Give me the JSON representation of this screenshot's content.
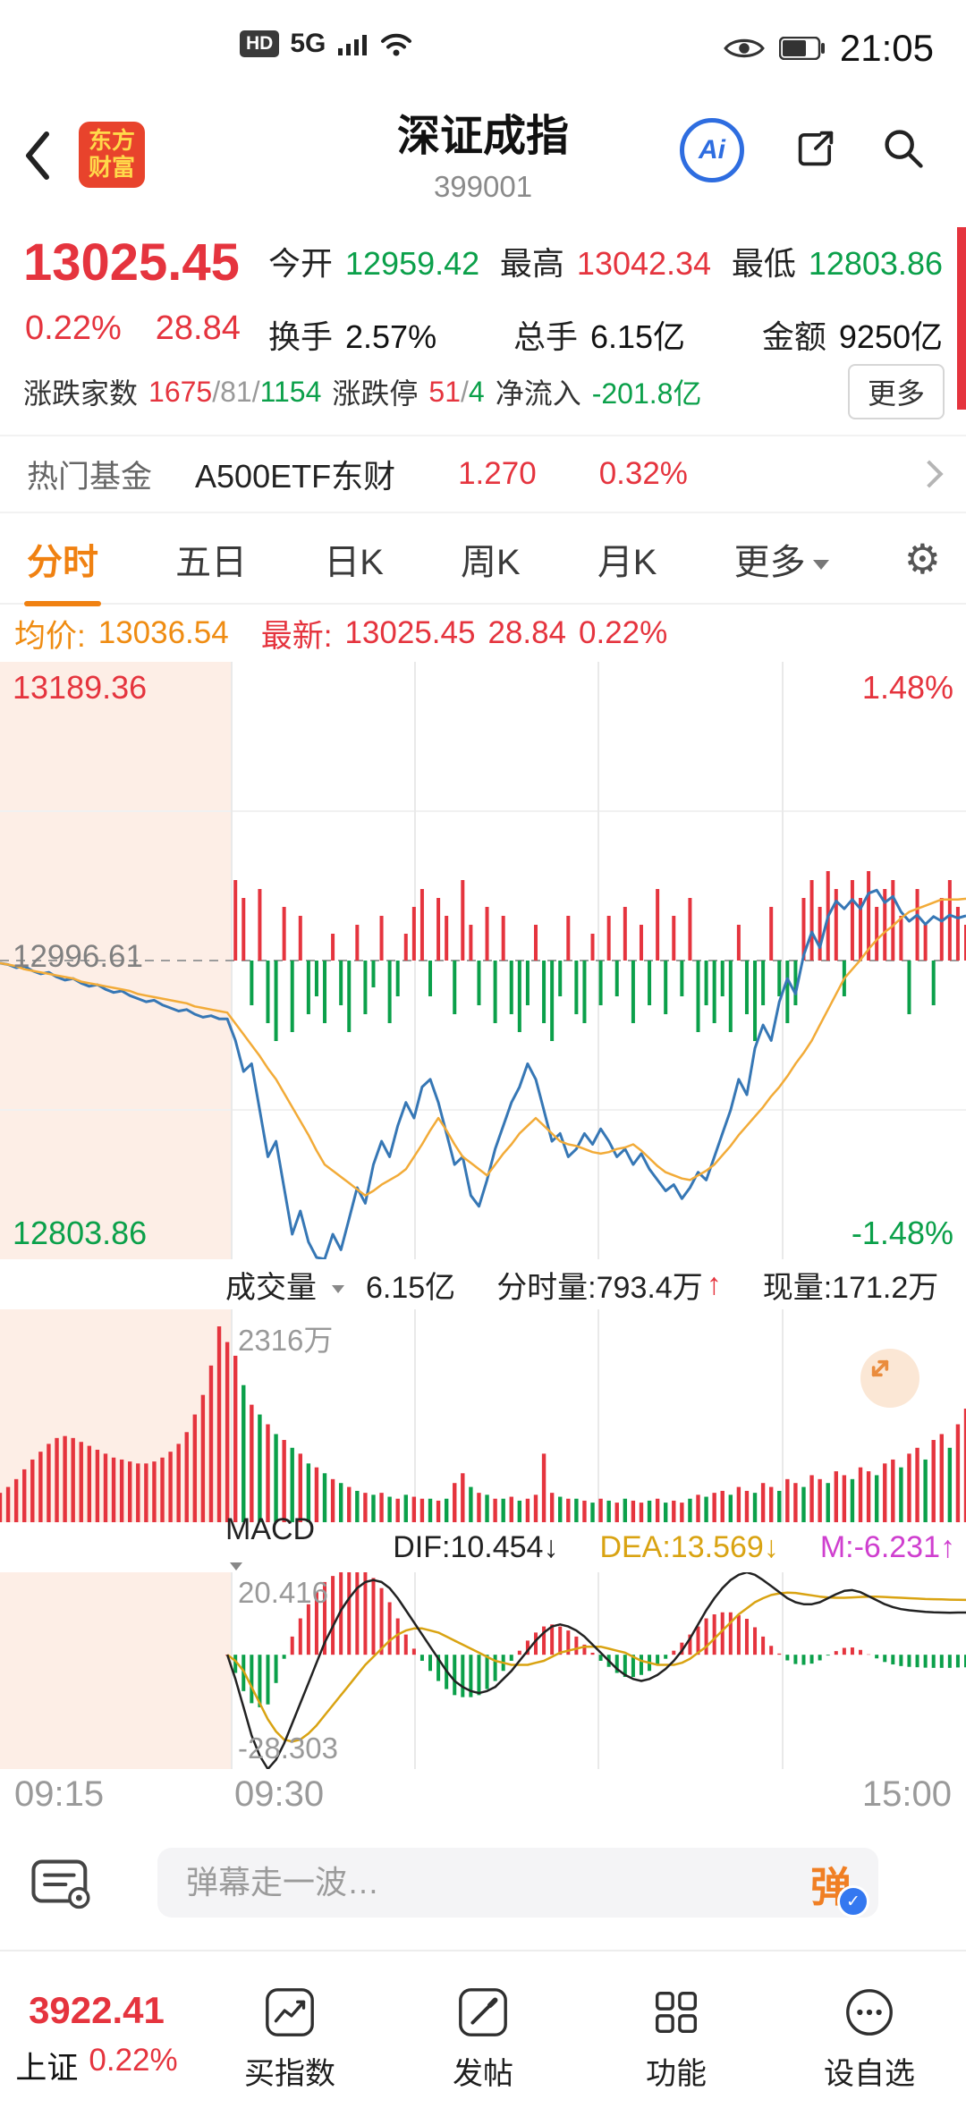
{
  "colors": {
    "red": "#e5343e",
    "green": "#0ba04a",
    "orange": "#f08111",
    "yellow_line": "#f2ab38",
    "blue_line": "#3677b5",
    "magenta": "#cf3fcf",
    "dea_yellow": "#d9a312",
    "pink_bg": "#fdeee6",
    "badge_blue": "#3478f0",
    "ai_blue": "#2e6de0"
  },
  "status_bar": {
    "hd": "HD",
    "network": "5G",
    "time": "21:05"
  },
  "header": {
    "logo_top": "东方",
    "logo_bottom": "财富",
    "title": "深证成指",
    "code": "399001",
    "ai": "Ai"
  },
  "quote": {
    "price": "13025.45",
    "change_pct": "0.22%",
    "change_amt": "28.84",
    "open_label": "今开",
    "open": "12959.42",
    "high_label": "最高",
    "high": "13042.34",
    "low_label": "最低",
    "low": "12803.86",
    "turnover_label": "换手",
    "turnover": "2.57%",
    "volume_label": "总手",
    "volume": "6.15亿",
    "amount_label": "金额",
    "amount": "9250亿",
    "breadth_label": "涨跌家数",
    "up_count": "1675",
    "flat_count": "81",
    "down_count": "1154",
    "slash": "/",
    "limit_label": "涨跌停",
    "limit_up": "51",
    "limit_down": "4",
    "inflow_label": "净流入",
    "inflow": "-201.8亿",
    "more": "更多"
  },
  "fund": {
    "label": "热门基金",
    "name": "A500ETF东财",
    "price": "1.270",
    "pct": "0.32%"
  },
  "tabs": {
    "items": [
      "分时",
      "五日",
      "日K",
      "周K",
      "月K"
    ],
    "more": "更多"
  },
  "info": {
    "avg_label": "均价:",
    "avg": "13036.54",
    "last_label": "最新:",
    "last": "13025.45",
    "chg": "28.84",
    "pct": "0.22%"
  },
  "volume_header": {
    "name": "成交量",
    "total": "6.15亿",
    "minute": "分时量:793.4万",
    "current": "现量:171.2万"
  },
  "macd_header": {
    "name": "MACD",
    "dif": "DIF:10.454↓",
    "dea": "DEA:13.569↓",
    "m": "M:-6.231↑"
  },
  "time_axis": [
    "09:15",
    "09:30",
    "15:00"
  ],
  "comment": {
    "placeholder": "弹幕走一波…",
    "send": "弹"
  },
  "nav": {
    "index_value": "3922.41",
    "index_name": "上证",
    "index_pct": "0.22%",
    "items": [
      "买指数",
      "发帖",
      "功能",
      "设自选"
    ]
  },
  "icons": {
    "gear": "⚙",
    "check": "✓",
    "arrow_up": "↑"
  },
  "chart_data": [
    {
      "type": "line",
      "name": "intraday-price",
      "ylim": [
        12803.86,
        13189.36
      ],
      "prev_close": 12996.61,
      "session_split": 0.24,
      "x_range": [
        "09:15",
        "15:00"
      ],
      "y_labels": {
        "top": "13189.36",
        "mid": "12996.61",
        "bottom": "12803.86",
        "top_pct": "1.48%",
        "bottom_pct": "-1.48%"
      },
      "series": [
        {
          "name": "price",
          "color": "#3677b5",
          "width": 3,
          "values": [
            12995,
            12994,
            12992,
            12993,
            12990,
            12988,
            12989,
            12986,
            12984,
            12985,
            12982,
            12980,
            12981,
            12978,
            12976,
            12977,
            12974,
            12972,
            12970,
            12971,
            12968,
            12966,
            12964,
            12965,
            12962,
            12960,
            12961,
            12959,
            12959,
            12945,
            12925,
            12930,
            12900,
            12870,
            12880,
            12850,
            12820,
            12835,
            12815,
            12805,
            12804,
            12820,
            12810,
            12830,
            12850,
            12840,
            12865,
            12880,
            12870,
            12890,
            12905,
            12895,
            12915,
            12920,
            12905,
            12885,
            12865,
            12870,
            12845,
            12838,
            12855,
            12875,
            12890,
            12905,
            12915,
            12930,
            12920,
            12900,
            12880,
            12885,
            12870,
            12875,
            12885,
            12878,
            12888,
            12880,
            12870,
            12875,
            12865,
            12872,
            12862,
            12855,
            12848,
            12852,
            12843,
            12850,
            12860,
            12855,
            12870,
            12885,
            12900,
            12920,
            12910,
            12940,
            12955,
            12945,
            12970,
            12985,
            12975,
            13000,
            13015,
            13005,
            13025,
            13035,
            13030,
            13036,
            13030,
            13040,
            13042,
            13034,
            13038,
            13028,
            13022,
            13026,
            13020,
            13025,
            13022,
            13026,
            13024,
            13025.45
          ]
        },
        {
          "name": "avg",
          "color": "#f2ab38",
          "width": 2.5,
          "values": [
            12995,
            12994,
            12993,
            12991,
            12990,
            12989,
            12988,
            12987,
            12986,
            12985,
            12983,
            12982,
            12981,
            12980,
            12979,
            12978,
            12977,
            12975,
            12974,
            12973,
            12972,
            12971,
            12970,
            12969,
            12967,
            12966,
            12965,
            12964,
            12963,
            12956,
            12949,
            12942,
            12935,
            12927,
            12920,
            12911,
            12902,
            12893,
            12884,
            12874,
            12865,
            12861,
            12857,
            12853,
            12849,
            12845,
            12848,
            12852,
            12855,
            12858,
            12862,
            12870,
            12878,
            12887,
            12895,
            12887,
            12878,
            12870,
            12866,
            12862,
            12858,
            12865,
            12872,
            12878,
            12885,
            12890,
            12895,
            12890,
            12885,
            12880,
            12878,
            12877,
            12875,
            12873,
            12872,
            12873,
            12875,
            12876,
            12878,
            12874,
            12869,
            12864,
            12860,
            12858,
            12856,
            12855,
            12858,
            12861,
            12865,
            12871,
            12877,
            12884,
            12890,
            12896,
            12902,
            12909,
            12915,
            12922,
            12930,
            12937,
            12945,
            12955,
            12965,
            12975,
            12985,
            12991,
            12997,
            13004,
            13010,
            13015,
            13019,
            13024,
            13028,
            13030,
            13032,
            13034,
            13036,
            13036,
            13036,
            13036.5
          ]
        }
      ],
      "pulse_bars": [
        0,
        0,
        0,
        0,
        0,
        0,
        0,
        0,
        0,
        0,
        0,
        0,
        0,
        0,
        0,
        0,
        0,
        0,
        0,
        0,
        0,
        0,
        0,
        0,
        0,
        0,
        0,
        0,
        0,
        0.9,
        0.7,
        -0.5,
        0.8,
        -0.7,
        -0.9,
        0.6,
        -0.8,
        0.5,
        -0.6,
        -0.4,
        -0.7,
        0.3,
        -0.5,
        -0.8,
        0.4,
        -0.6,
        -0.3,
        0.5,
        -0.7,
        -0.4,
        0.3,
        0.6,
        0.8,
        -0.4,
        0.7,
        0.5,
        -0.6,
        0.9,
        0.4,
        -0.5,
        0.6,
        -0.7,
        0.5,
        -0.6,
        -0.8,
        -0.5,
        0.4,
        -0.7,
        -0.9,
        -0.4,
        0.5,
        -0.6,
        -0.7,
        0.3,
        -0.5,
        0.5,
        -0.4,
        0.6,
        -0.7,
        0.4,
        -0.5,
        0.8,
        -0.6,
        0.5,
        -0.4,
        0.7,
        -0.8,
        -0.5,
        -0.7,
        -0.4,
        -0.8,
        0.4,
        -0.6,
        -0.9,
        -0.5,
        0.6,
        -0.4,
        -0.7,
        -0.5,
        0.7,
        0.9,
        0.6,
        1.0,
        0.8,
        -0.4,
        0.9,
        0.7,
        1.0,
        0.6,
        0.8,
        0.9,
        0.5,
        -0.6,
        0.8,
        0.4,
        -0.5,
        0.7,
        0.9,
        0.6,
        0.4
      ]
    },
    {
      "type": "bar",
      "name": "volume",
      "max_label": "2316万",
      "unit": "万",
      "values": [
        0.15,
        0.18,
        0.22,
        0.27,
        0.32,
        0.36,
        0.4,
        0.43,
        0.44,
        0.43,
        0.41,
        0.39,
        0.37,
        0.35,
        0.33,
        0.32,
        0.31,
        0.3,
        0.3,
        0.31,
        0.33,
        0.36,
        0.4,
        0.46,
        0.55,
        0.65,
        0.8,
        1.0,
        0.92,
        0.85,
        -0.7,
        0.6,
        -0.55,
        0.5,
        -0.45,
        0.42,
        -0.38,
        0.35,
        -0.3,
        0.28,
        -0.25,
        0.22,
        -0.2,
        0.18,
        -0.16,
        0.15,
        -0.14,
        0.15,
        -0.13,
        0.12,
        -0.14,
        0.13,
        0.12,
        -0.12,
        0.11,
        -0.12,
        0.2,
        0.25,
        -0.18,
        0.15,
        -0.14,
        0.12,
        -0.12,
        0.13,
        -0.11,
        0.12,
        0.14,
        0.35,
        0.15,
        -0.13,
        0.12,
        -0.12,
        0.11,
        -0.1,
        0.12,
        -0.11,
        0.1,
        -0.12,
        0.11,
        0.1,
        -0.11,
        0.12,
        -0.1,
        0.11,
        0.1,
        -0.12,
        0.14,
        -0.13,
        0.15,
        0.16,
        -0.14,
        0.18,
        0.16,
        -0.15,
        0.2,
        0.18,
        -0.16,
        0.22,
        0.2,
        -0.18,
        0.24,
        0.22,
        -0.2,
        0.26,
        0.24,
        -0.22,
        0.28,
        0.26,
        -0.24,
        0.3,
        0.32,
        -0.28,
        0.35,
        0.38,
        -0.32,
        0.42,
        0.45,
        -0.38,
        0.5,
        0.58
      ]
    },
    {
      "type": "macd",
      "name": "macd",
      "ylim": [
        -28.303,
        20.416
      ],
      "y_labels": {
        "top": "20.416",
        "bottom": "-28.303"
      },
      "dif": [
        null,
        null,
        null,
        null,
        null,
        null,
        null,
        null,
        null,
        null,
        null,
        null,
        null,
        null,
        null,
        null,
        null,
        null,
        null,
        null,
        null,
        null,
        null,
        null,
        null,
        null,
        null,
        null,
        0,
        -6,
        -13,
        -20,
        -25,
        -28.3,
        -26,
        -22,
        -17,
        -12,
        -7,
        -2,
        3,
        7,
        11,
        14,
        16.5,
        18,
        18.5,
        18,
        16.5,
        14,
        11,
        8,
        5,
        2,
        -1,
        -4,
        -6.5,
        -8,
        -9,
        -9.5,
        -9,
        -8,
        -6,
        -4,
        -1.5,
        1,
        3.5,
        5.5,
        7,
        7.5,
        7,
        6,
        4.5,
        2.5,
        0.5,
        -1.5,
        -3.5,
        -5,
        -6,
        -6.5,
        -6,
        -5,
        -3.5,
        -1.5,
        1,
        4,
        7.5,
        11,
        14,
        16.5,
        18.5,
        19.8,
        20.4,
        19.8,
        18.5,
        17,
        15.5,
        14,
        13,
        12.5,
        12.5,
        13,
        14,
        15,
        15.8,
        16,
        15.5,
        14.5,
        13.5,
        12.5,
        11.8,
        11.3,
        11,
        10.8,
        10.6,
        10.5,
        10.45,
        10.4,
        10.45,
        10.454
      ],
      "dea": [
        null,
        null,
        null,
        null,
        null,
        null,
        null,
        null,
        null,
        null,
        null,
        null,
        null,
        null,
        null,
        null,
        null,
        null,
        null,
        null,
        null,
        null,
        null,
        null,
        null,
        null,
        null,
        null,
        0,
        -1.5,
        -4,
        -8,
        -12,
        -16,
        -19,
        -21,
        -21.5,
        -21,
        -19.5,
        -17.5,
        -15,
        -12.5,
        -10,
        -7.5,
        -5,
        -2.5,
        -0.5,
        1.5,
        3.5,
        5,
        6,
        6.5,
        6.5,
        6,
        5.5,
        4.5,
        3.5,
        2.5,
        1.5,
        0.5,
        -0.5,
        -1.5,
        -2,
        -2.5,
        -2.5,
        -2.5,
        -2,
        -1.5,
        -0.5,
        0.5,
        1,
        1.5,
        2,
        2,
        2,
        1.5,
        1,
        0.5,
        -0.5,
        -1.5,
        -2,
        -2.5,
        -2.5,
        -2.5,
        -2,
        -1,
        0.5,
        2,
        4,
        6,
        8,
        10,
        11.5,
        13,
        14,
        14.8,
        15.2,
        15.4,
        15.3,
        15,
        14.7,
        14.4,
        14.2,
        14.1,
        14.1,
        14.2,
        14.3,
        14.4,
        14.4,
        14.3,
        14.2,
        14.1,
        14,
        13.9,
        13.8,
        13.75,
        13.7,
        13.65,
        13.6,
        13.569
      ]
    }
  ]
}
